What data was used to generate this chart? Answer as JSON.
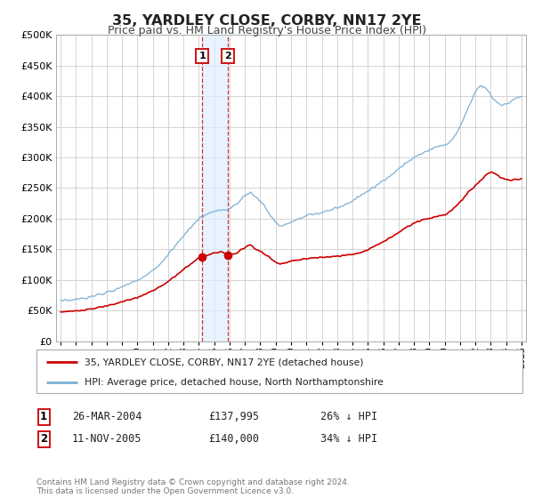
{
  "title": "35, YARDLEY CLOSE, CORBY, NN17 2YE",
  "subtitle": "Price paid vs. HM Land Registry's House Price Index (HPI)",
  "title_fontsize": 11.5,
  "subtitle_fontsize": 9,
  "bg_color": "#ffffff",
  "plot_bg_color": "#ffffff",
  "grid_color": "#cccccc",
  "red_line_color": "#cc0000",
  "blue_line_color": "#7bafd4",
  "sale1_date": 2004.23,
  "sale1_price": 137995,
  "sale2_date": 2005.87,
  "sale2_price": 140000,
  "shade_start": 2004.23,
  "shade_end": 2005.87,
  "legend_entry1": "35, YARDLEY CLOSE, CORBY, NN17 2YE (detached house)",
  "legend_entry2": "HPI: Average price, detached house, North Northamptonshire",
  "table_row1": [
    "1",
    "26-MAR-2004",
    "£137,995",
    "26% ↓ HPI"
  ],
  "table_row2": [
    "2",
    "11-NOV-2005",
    "£140,000",
    "34% ↓ HPI"
  ],
  "footer": "Contains HM Land Registry data © Crown copyright and database right 2024.\nThis data is licensed under the Open Government Licence v3.0.",
  "ylim": [
    0,
    500000
  ],
  "yticks": [
    0,
    50000,
    100000,
    150000,
    200000,
    250000,
    300000,
    350000,
    400000,
    450000,
    500000
  ],
  "xlim_start": 1994.7,
  "xlim_end": 2025.3
}
